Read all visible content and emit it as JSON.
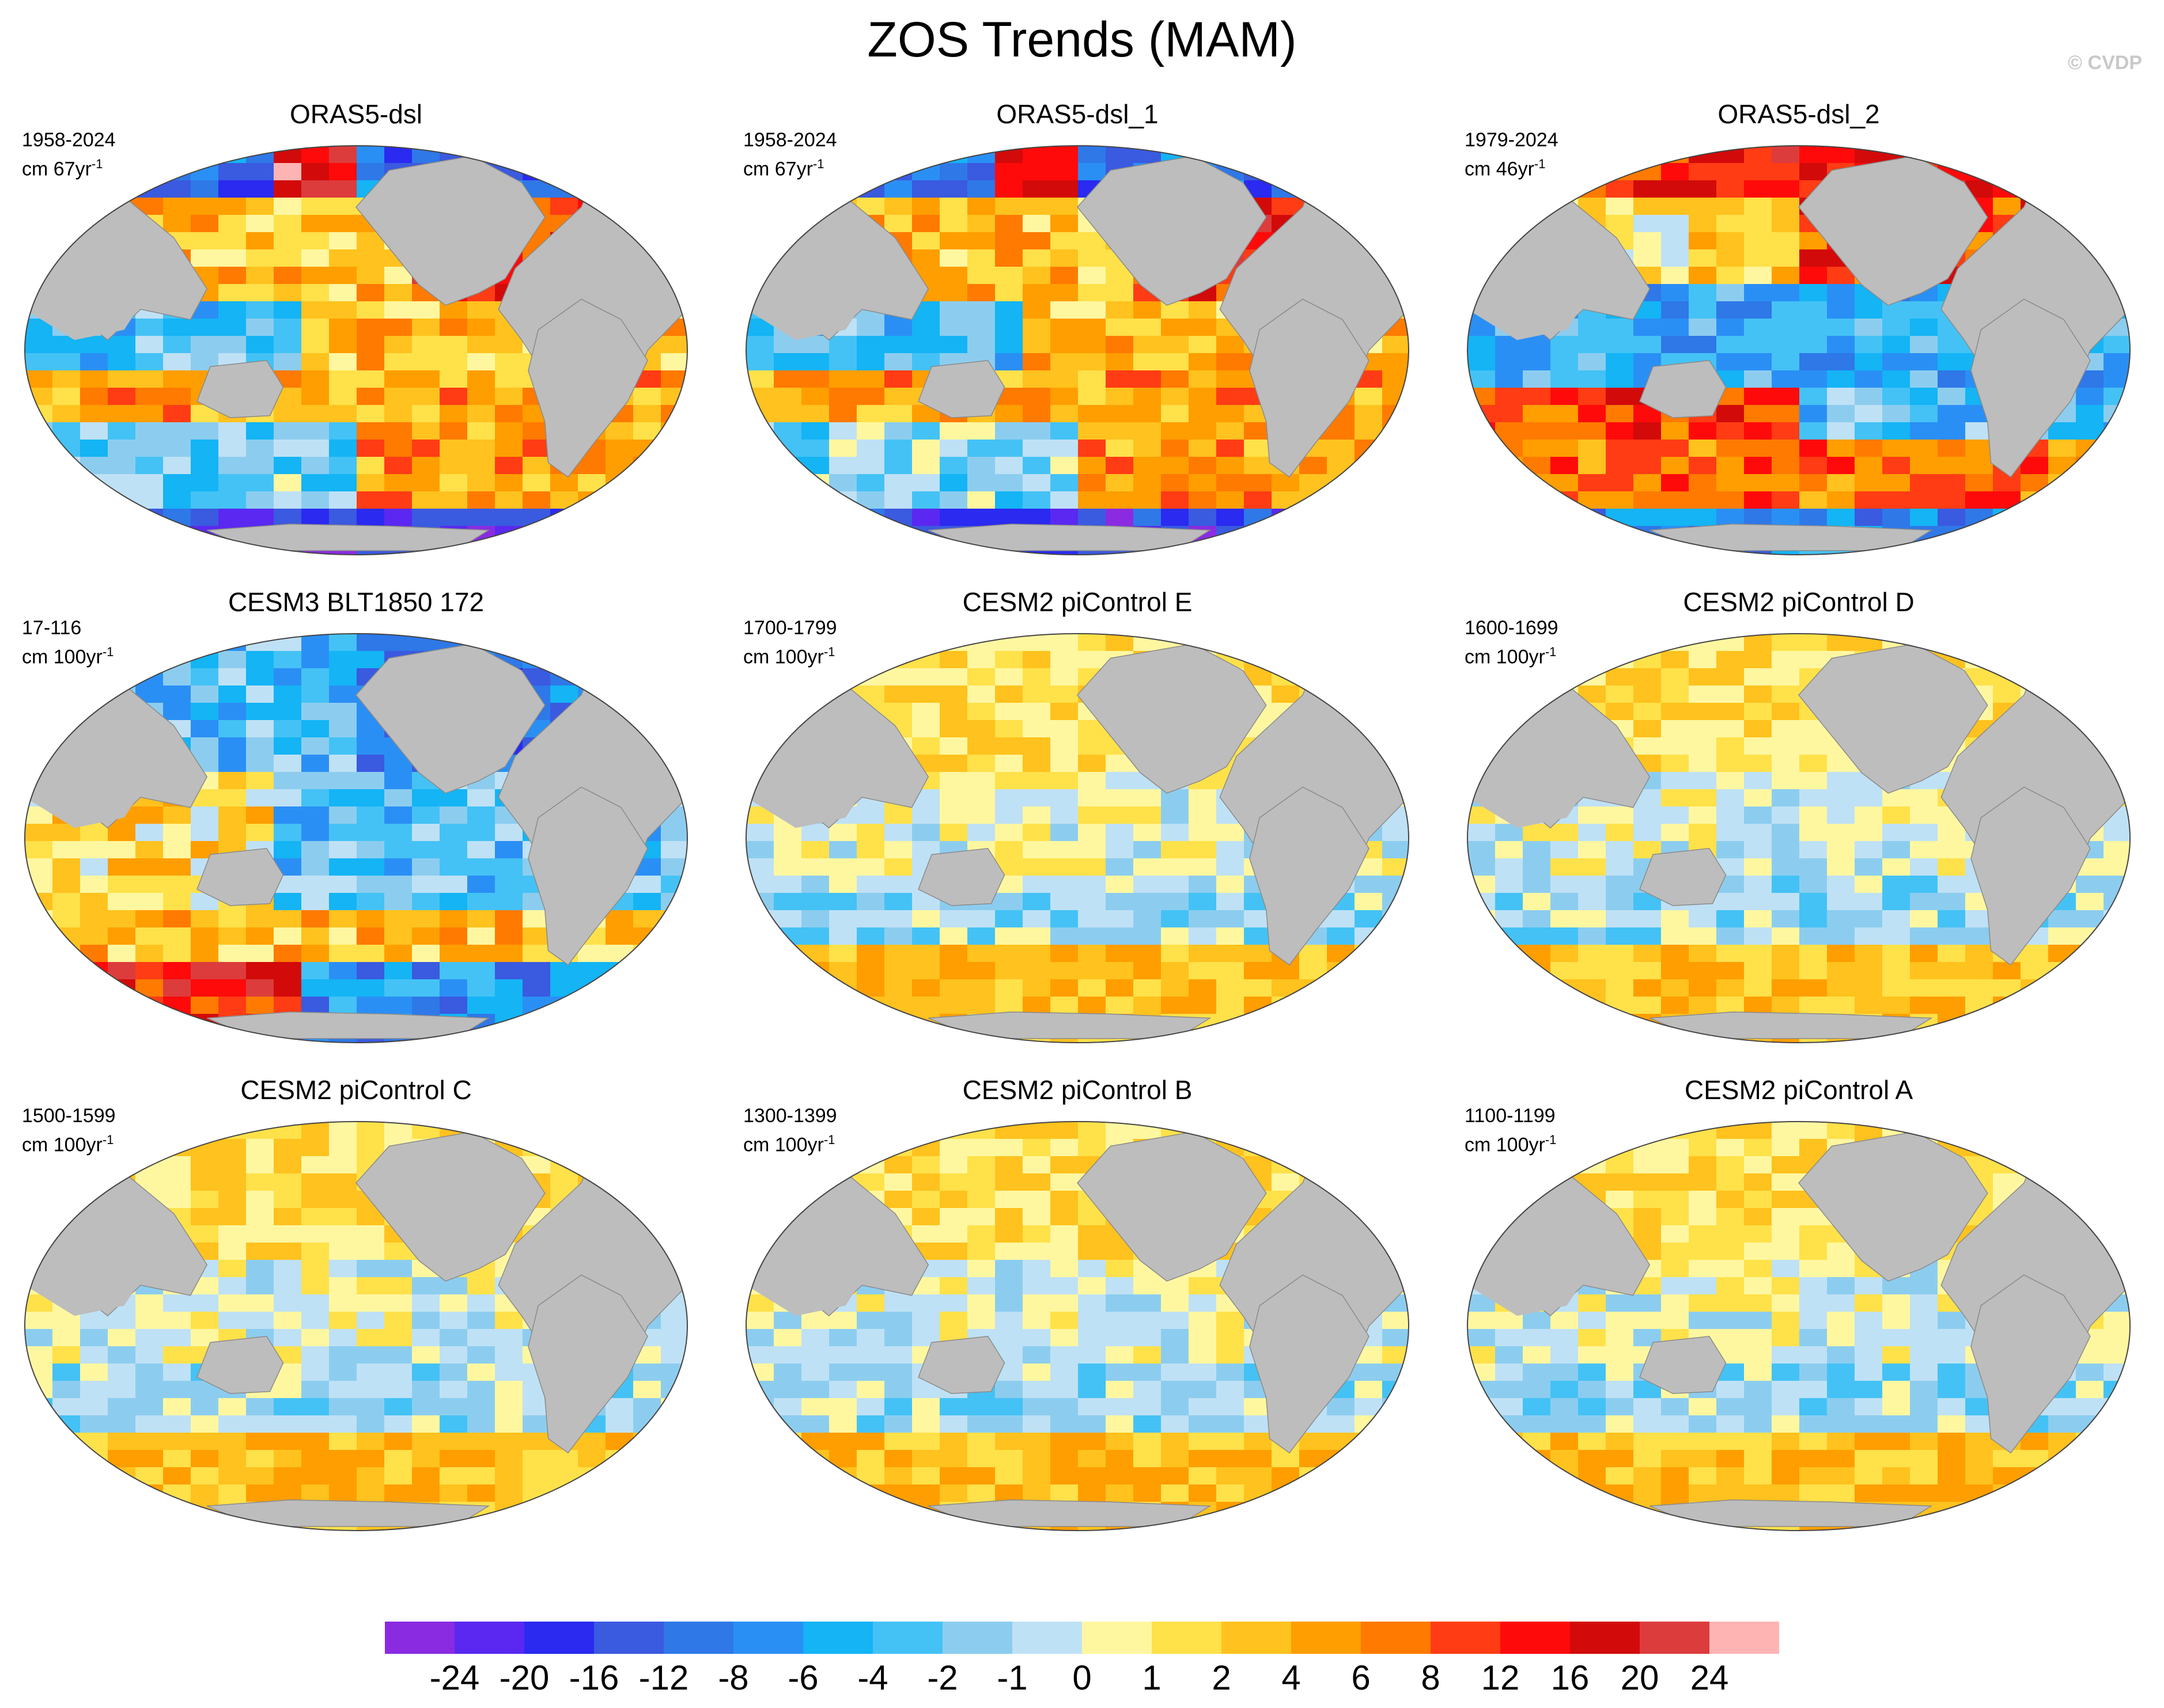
{
  "title": "ZOS Trends (MAM)",
  "credit": "© CVDP",
  "colors": {
    "land": "#bdbdbd",
    "ocean_outline": "#444444"
  },
  "panels": [
    {
      "title": "ORAS5-dsl",
      "period": "1958-2024",
      "units_prefix": "cm 67yr",
      "units_exp": "-1",
      "map_style": "obs1"
    },
    {
      "title": "ORAS5-dsl_1",
      "period": "1958-2024",
      "units_prefix": "cm 67yr",
      "units_exp": "-1",
      "map_style": "obs1"
    },
    {
      "title": "ORAS5-dsl_2",
      "period": "1979-2024",
      "units_prefix": "cm 46yr",
      "units_exp": "-1",
      "map_style": "obs2"
    },
    {
      "title": "CESM3 BLT1850 172",
      "period": "17-116",
      "units_prefix": "cm 100yr",
      "units_exp": "-1",
      "map_style": "cesm3"
    },
    {
      "title": "CESM2 piControl E",
      "period": "1700-1799",
      "units_prefix": "cm 100yr",
      "units_exp": "-1",
      "map_style": "pic"
    },
    {
      "title": "CESM2 piControl D",
      "period": "1600-1699",
      "units_prefix": "cm 100yr",
      "units_exp": "-1",
      "map_style": "pic"
    },
    {
      "title": "CESM2 piControl C",
      "period": "1500-1599",
      "units_prefix": "cm 100yr",
      "units_exp": "-1",
      "map_style": "pic"
    },
    {
      "title": "CESM2 piControl B",
      "period": "1300-1399",
      "units_prefix": "cm 100yr",
      "units_exp": "-1",
      "map_style": "pic"
    },
    {
      "title": "CESM2 piControl A",
      "period": "1100-1199",
      "units_prefix": "cm 100yr",
      "units_exp": "-1",
      "map_style": "pic"
    }
  ],
  "colorbar": {
    "colors": [
      "#8a2be2",
      "#5a28f0",
      "#2a2af0",
      "#3a5ae0",
      "#2e78e8",
      "#2a8ff5",
      "#14b4f5",
      "#44c2f5",
      "#8ccdef",
      "#bfe1f5",
      "#fff7a0",
      "#ffe14a",
      "#ffc21e",
      "#ff9e00",
      "#ff7a00",
      "#ff3c14",
      "#ff0a0a",
      "#d20a0a",
      "#dc3c3c",
      "#ffb4b4"
    ],
    "labels": [
      "-24",
      "-20",
      "-16",
      "-12",
      "-8",
      "-6",
      "-4",
      "-2",
      "-1",
      "0",
      "1",
      "2",
      "4",
      "6",
      "8",
      "12",
      "16",
      "20",
      "24"
    ]
  }
}
